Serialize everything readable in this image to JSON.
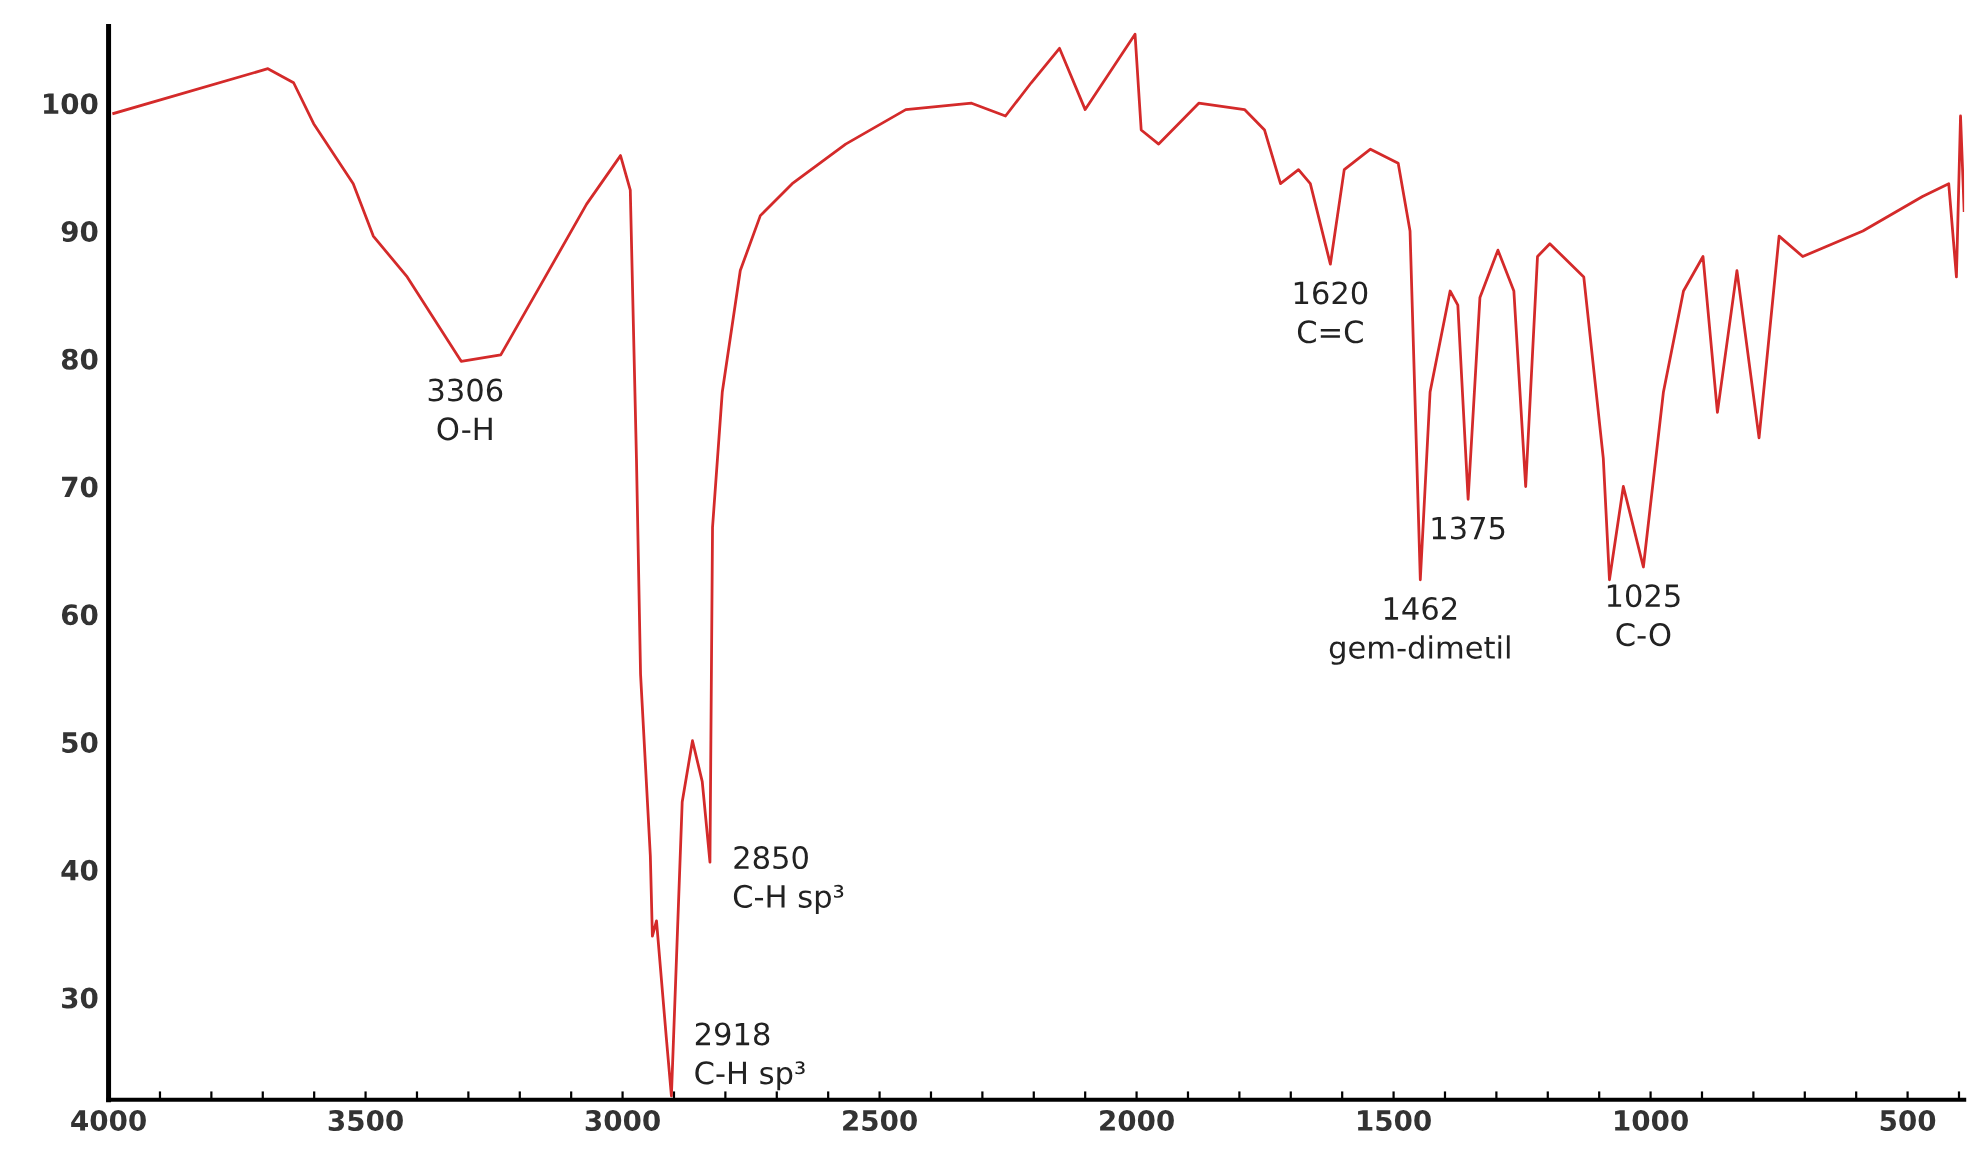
{
  "chart_data": {
    "type": "line",
    "series": [
      {
        "color": "#d42a2a",
        "x": [
          3990,
          3690,
          3640,
          3601,
          3524,
          3485,
          3419,
          3314,
          3237,
          3159,
          3070,
          3004,
          2985,
          2973,
          2965,
          2946,
          2942,
          2934,
          2915,
          2905,
          2895,
          2884,
          2864,
          2845,
          2830,
          2825,
          2806,
          2771,
          2732,
          2670,
          2566,
          2449,
          2321,
          2255,
          2205,
          2150,
          2100,
          2003,
          1991,
          1957,
          1879,
          1790,
          1751,
          1720,
          1685,
          1662,
          1623,
          1596,
          1545,
          1491,
          1468,
          1448,
          1429,
          1390,
          1375,
          1355,
          1332,
          1297,
          1266,
          1243,
          1220,
          1196,
          1130,
          1092,
          1080,
          1053,
          1014,
          975,
          936,
          898,
          870,
          832,
          789,
          750,
          704,
          587,
          471,
          420,
          405,
          397,
          390
        ],
        "values": [
          99.2,
          102.7,
          101.6,
          98.4,
          93.7,
          89.6,
          86.4,
          79.8,
          80.3,
          85.8,
          92.1,
          95.9,
          93.2,
          72.2,
          55.3,
          41.1,
          34.8,
          36.0,
          26.9,
          22.3,
          33.2,
          45.3,
          50.1,
          46.9,
          40.6,
          66.8,
          77.4,
          86.9,
          91.2,
          93.7,
          96.8,
          99.5,
          100,
          99,
          101.6,
          104.3,
          99.5,
          105.4,
          97.9,
          96.8,
          100,
          99.5,
          97.9,
          93.7,
          94.8,
          93.7,
          87.4,
          94.8,
          96.4,
          95.3,
          90.0,
          62.7,
          77.4,
          85.3,
          84.2,
          69.0,
          84.8,
          88.5,
          85.3,
          70.0,
          88.0,
          89.0,
          86.4,
          72.2,
          62.7,
          70.0,
          63.7,
          77.4,
          85.3,
          88.0,
          75.8,
          86.9,
          73.8,
          89.6,
          88.0,
          90.0,
          92.7,
          93.7,
          86.4,
          99.0,
          91.6
        ]
      }
    ],
    "xlim": [
      4000,
      390
    ],
    "ylim": [
      22,
      106
    ],
    "xticks": [
      4000,
      {
        "value": 3900,
        "label": null
      },
      {
        "value": 3800,
        "label": null
      },
      {
        "value": 3700,
        "label": null
      },
      {
        "value": 3600,
        "label": null
      },
      3500,
      {
        "value": 3400,
        "label": null
      },
      {
        "value": 3300,
        "label": null
      },
      {
        "value": 3200,
        "label": null
      },
      {
        "value": 3100,
        "label": null
      },
      3000,
      {
        "value": 2900,
        "label": null
      },
      {
        "value": 2800,
        "label": null
      },
      {
        "value": 2700,
        "label": null
      },
      {
        "value": 2600,
        "label": null
      },
      2500,
      {
        "value": 2400,
        "label": null
      },
      {
        "value": 2300,
        "label": null
      },
      {
        "value": 2200,
        "label": null
      },
      {
        "value": 2100,
        "label": null
      },
      2000,
      {
        "value": 1900,
        "label": null
      },
      {
        "value": 1800,
        "label": null
      },
      {
        "value": 1700,
        "label": null
      },
      {
        "value": 1600,
        "label": null
      },
      1500,
      {
        "value": 1400,
        "label": null
      },
      {
        "value": 1300,
        "label": null
      },
      {
        "value": 1200,
        "label": null
      },
      {
        "value": 1100,
        "label": null
      },
      1000,
      {
        "value": 900,
        "label": null
      },
      {
        "value": 800,
        "label": null
      },
      {
        "value": 700,
        "label": null
      },
      {
        "value": 600,
        "label": null
      },
      500,
      {
        "value": 400,
        "label": null
      }
    ],
    "yticks": [
      30,
      40,
      50,
      60,
      70,
      80,
      90,
      100
    ],
    "grid": false,
    "marker": "none",
    "line_style": "solid",
    "annotations": [
      {
        "text": "3306\nO-H",
        "x": 3306,
        "y": 79.8
      },
      {
        "text": "2850\nC-H sp³",
        "x": 2830,
        "y": 40.6
      },
      {
        "text": "2918\nC-H sp³",
        "x": 2905,
        "y": 22.3
      },
      {
        "text": "1620\nC=C",
        "x": 1623,
        "y": 87.4
      },
      {
        "text": "1375",
        "x": 1355,
        "y": 69.0
      },
      {
        "text": "1462\ngem-dimetil",
        "x": 1448,
        "y": 62.7
      },
      {
        "text": "1025\nC-O",
        "x": 1014,
        "y": 63.7
      }
    ]
  }
}
